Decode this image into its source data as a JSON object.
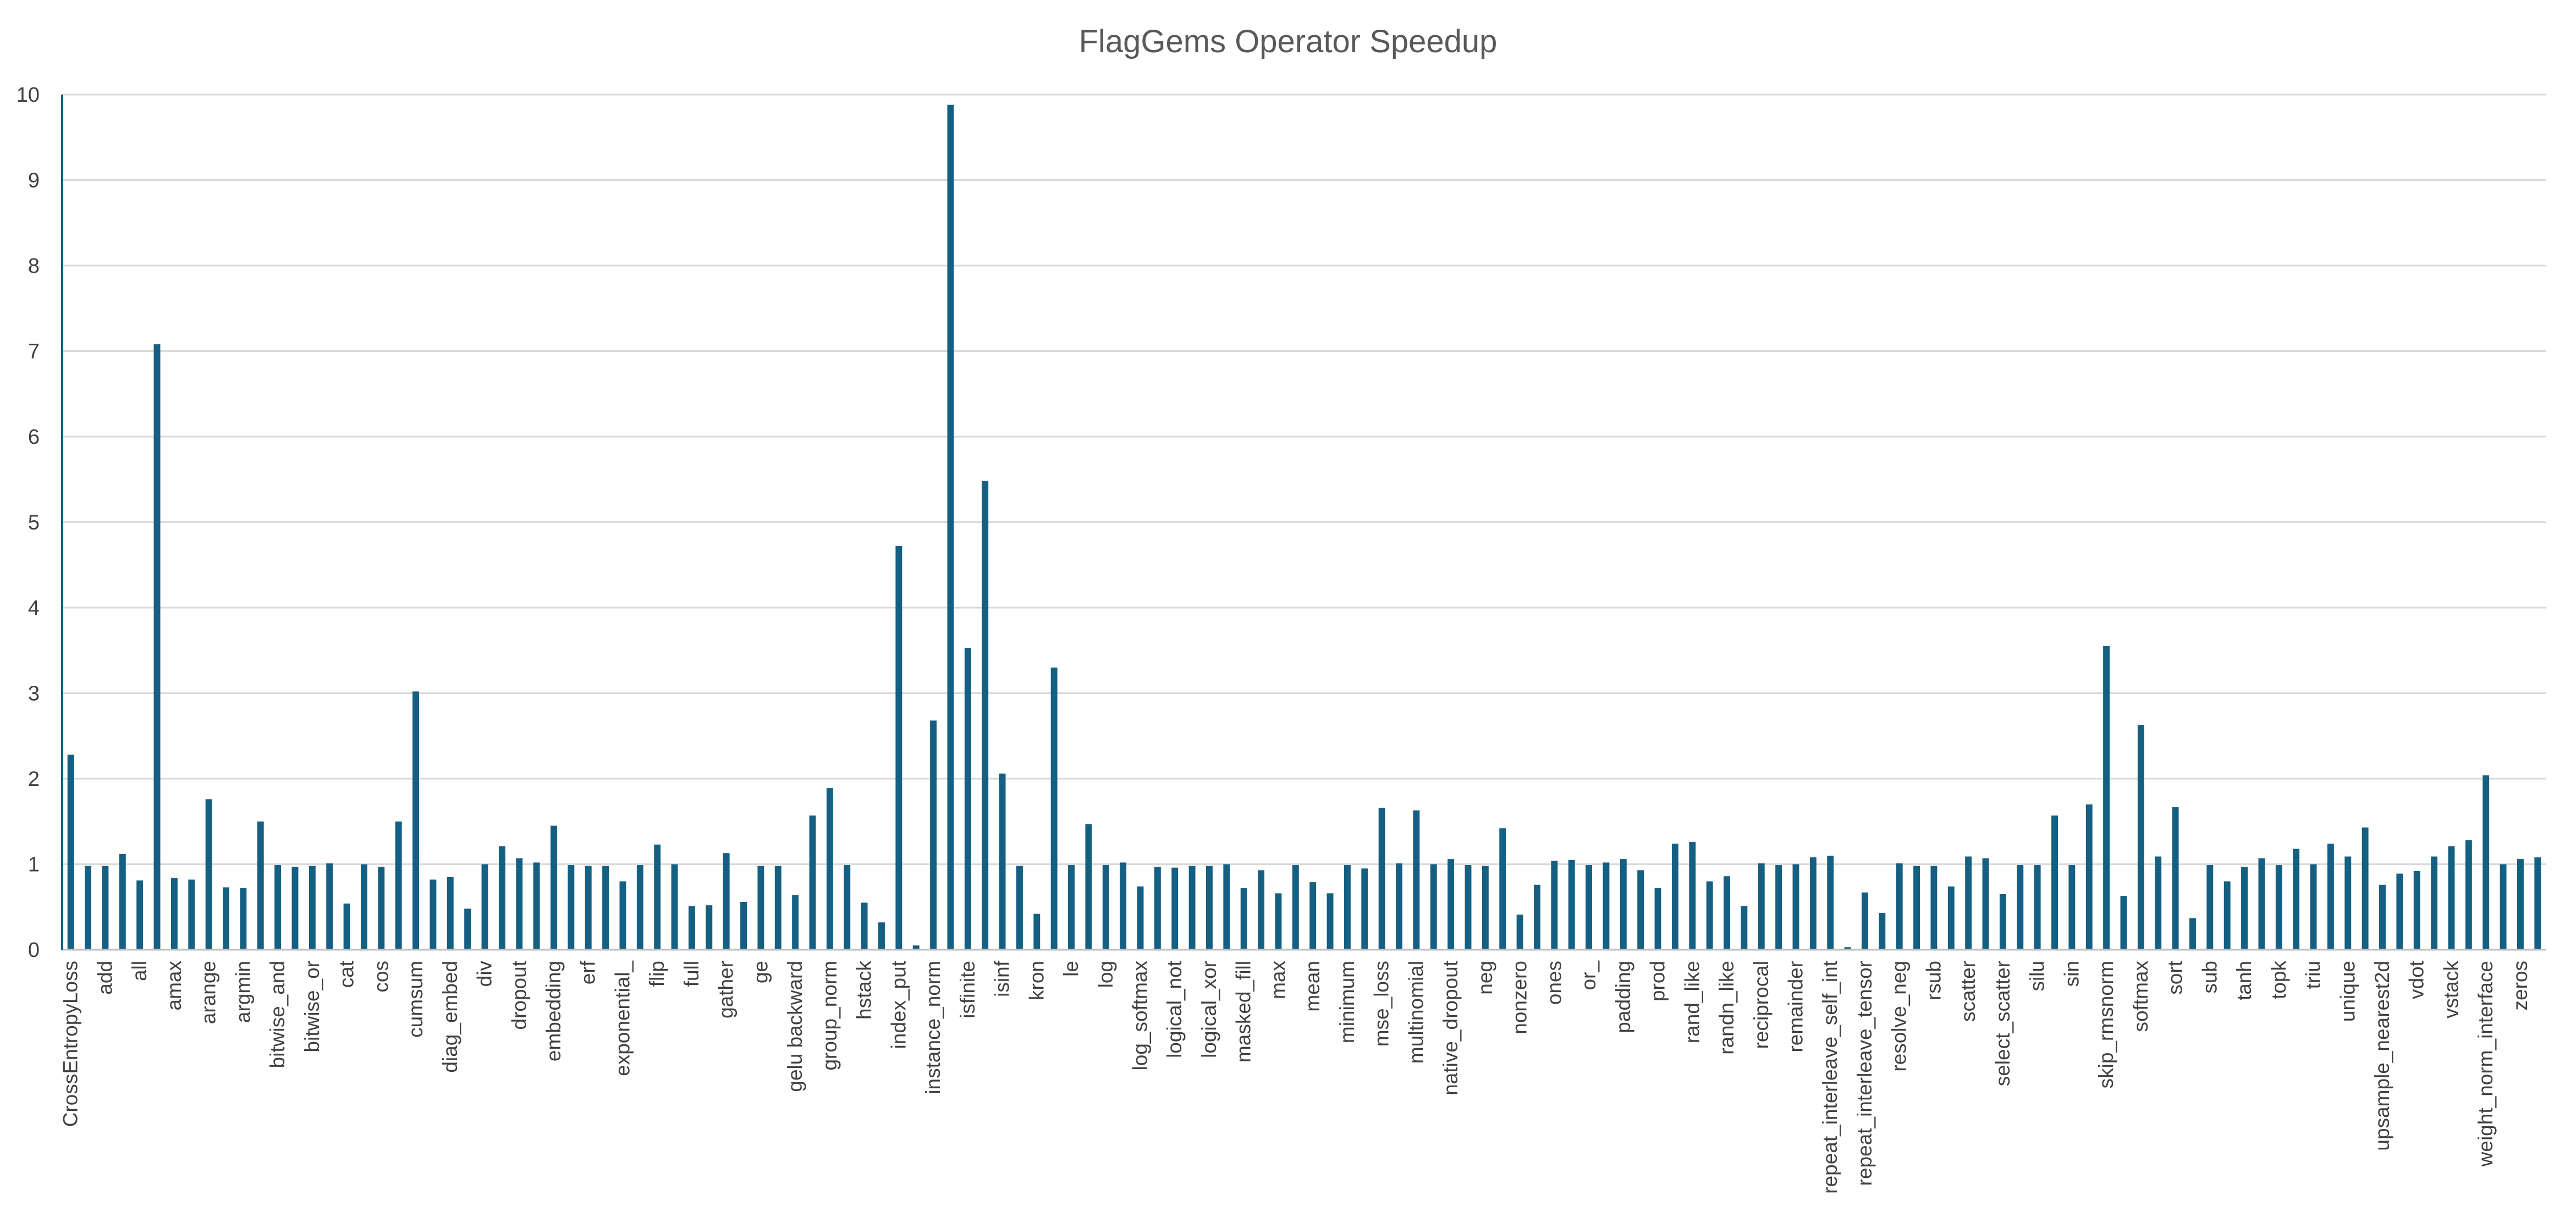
{
  "chart_data": {
    "type": "bar",
    "title": "FlagGems Operator Speedup",
    "xlabel": "",
    "ylabel": "",
    "ylim": [
      0,
      10
    ],
    "yticks": [
      "0",
      "1",
      "2",
      "3",
      "4",
      "5",
      "6",
      "7",
      "8",
      "9",
      "10"
    ],
    "grid": true,
    "legend": "none",
    "bar_color": "#156082",
    "categories": [
      "CrossEntropyLoss",
      "",
      "add",
      "",
      "all",
      "",
      "amax",
      "",
      "arange",
      "",
      "argmin",
      "",
      "bitwise_and",
      "",
      "bitwise_or",
      "",
      "cat",
      "",
      "cos",
      "",
      "cumsum",
      "",
      "diag_embed",
      "",
      "div",
      "",
      "dropout",
      "",
      "embedding",
      "",
      "erf",
      "",
      "exponential_",
      "",
      "flip",
      "",
      "full",
      "",
      "gather",
      "",
      "ge",
      "",
      "gelu backward",
      "",
      "group_norm",
      "",
      "hstack",
      "",
      "index_put",
      "",
      "instance_norm",
      "",
      "isfinite",
      "",
      "isinf",
      "",
      "kron",
      "",
      "le",
      "",
      "log",
      "",
      "log_softmax",
      "",
      "logical_not",
      "",
      "logical_xor",
      "",
      "masked_fill",
      "",
      "max",
      "",
      "mean",
      "",
      "minimum",
      "",
      "mse_loss",
      "",
      "multinomial",
      "",
      "native_dropout",
      "",
      "neg",
      "",
      "nonzero",
      "",
      "ones",
      "",
      "or_",
      "",
      "padding",
      "",
      "prod",
      "",
      "rand_like",
      "",
      "randn_like",
      "",
      "reciprocal",
      "",
      "remainder",
      "",
      "repeat_interleave_self_int",
      "",
      "repeat_interleave_tensor",
      "",
      "resolve_neg",
      "",
      "rsub",
      "",
      "scatter",
      "",
      "select_scatter",
      "",
      "silu",
      "",
      "sin",
      "",
      "skip_rmsnorm",
      "",
      "softmax",
      "",
      "sort",
      "",
      "sub",
      "",
      "tanh",
      "",
      "topk",
      "",
      "triu",
      "",
      "unique",
      "",
      "upsample_nearest2d",
      "",
      "vdot",
      "",
      "vstack",
      "",
      "weight_norm_interface",
      "",
      "zeros",
      ""
    ],
    "values": [
      2.28,
      0.98,
      0.98,
      1.12,
      0.81,
      7.08,
      0.84,
      0.82,
      1.76,
      0.73,
      0.72,
      1.5,
      0.99,
      0.97,
      0.98,
      1.01,
      0.54,
      1.0,
      0.97,
      1.5,
      3.02,
      0.82,
      0.85,
      0.48,
      1.0,
      1.21,
      1.07,
      1.02,
      1.45,
      0.99,
      0.98,
      0.98,
      0.8,
      0.99,
      1.23,
      1.0,
      0.51,
      0.52,
      1.13,
      0.56,
      0.98,
      0.98,
      0.64,
      1.57,
      1.89,
      0.99,
      0.55,
      0.32,
      4.72,
      0.05,
      2.68,
      9.88,
      3.53,
      5.48,
      2.06,
      0.98,
      0.42,
      3.3,
      0.99,
      1.47,
      0.99,
      1.02,
      0.74,
      0.97,
      0.96,
      0.98,
      0.98,
      1.0,
      0.72,
      0.93,
      0.66,
      0.99,
      0.79,
      0.66,
      0.99,
      0.95,
      1.66,
      1.01,
      1.63,
      1.0,
      1.06,
      0.99,
      0.98,
      1.42,
      0.41,
      0.76,
      1.04,
      1.05,
      0.99,
      1.02,
      1.06,
      0.93,
      0.72,
      1.24,
      1.26,
      0.8,
      0.86,
      0.51,
      1.01,
      0.99,
      1.0,
      1.08,
      1.1,
      0.03,
      0.67,
      0.43,
      1.01,
      0.98,
      0.98,
      0.74,
      1.09,
      1.07,
      0.65,
      0.99,
      0.99,
      1.57,
      0.99,
      1.7,
      3.55,
      0.63,
      2.63,
      1.09,
      1.67,
      0.37,
      0.99,
      0.8,
      0.97,
      1.07,
      0.99,
      1.18,
      1.0,
      1.24,
      1.09,
      1.43,
      0.76,
      0.89,
      0.92,
      1.09,
      1.21,
      1.28,
      2.04,
      1.0,
      1.06,
      1.08
    ]
  }
}
